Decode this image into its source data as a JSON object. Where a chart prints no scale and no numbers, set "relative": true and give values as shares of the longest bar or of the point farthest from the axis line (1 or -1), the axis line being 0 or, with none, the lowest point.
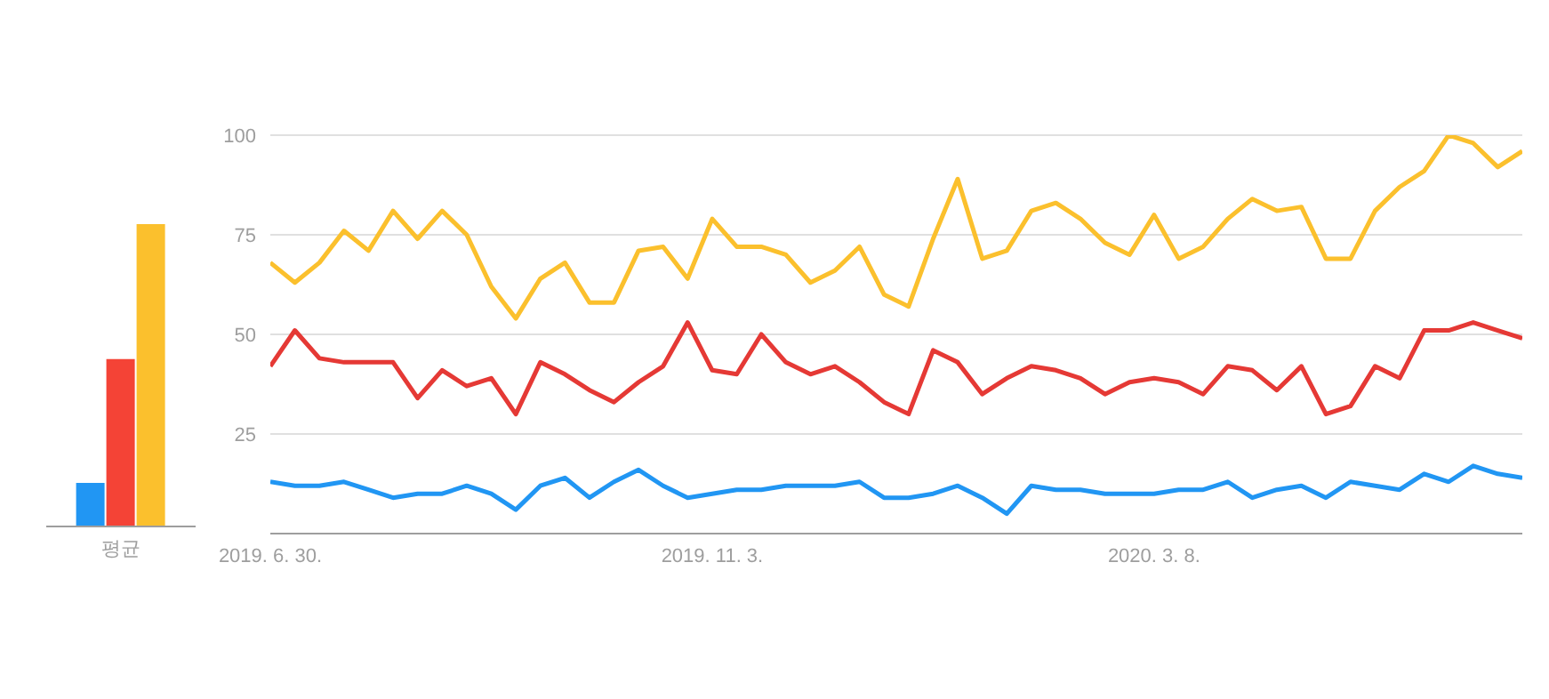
{
  "chart_data": [
    {
      "type": "bar",
      "relative": true,
      "categories": [
        "평균"
      ],
      "series": [
        {
          "color": "#2196f3",
          "values": [
            0.144
          ]
        },
        {
          "color": "#f44336",
          "values": [
            0.554
          ]
        },
        {
          "color": "#fbc02d",
          "values": [
            1
          ]
        }
      ]
    },
    {
      "type": "line",
      "grid": "y",
      "ylim": [
        0,
        100
      ],
      "yticks": [
        25,
        50,
        75,
        100
      ],
      "xlim": [
        "2019-06-30",
        "2020-06-21"
      ],
      "xticks": [
        {
          "value": "2019-06-30",
          "label": "2019. 6. 30."
        },
        {
          "value": "2019-11-03",
          "label": "2019. 11. 3."
        },
        {
          "value": "2020-03-08",
          "label": "2020. 3. 8."
        }
      ],
      "x": [
        "2019-06-30",
        "2019-07-07",
        "2019-07-14",
        "2019-07-21",
        "2019-07-28",
        "2019-08-04",
        "2019-08-11",
        "2019-08-18",
        "2019-08-25",
        "2019-09-01",
        "2019-09-08",
        "2019-09-15",
        "2019-09-22",
        "2019-09-29",
        "2019-10-06",
        "2019-10-13",
        "2019-10-20",
        "2019-10-27",
        "2019-11-03",
        "2019-11-10",
        "2019-11-17",
        "2019-11-24",
        "2019-12-01",
        "2019-12-08",
        "2019-12-15",
        "2019-12-22",
        "2019-12-29",
        "2020-01-05",
        "2020-01-12",
        "2020-01-19",
        "2020-01-26",
        "2020-02-02",
        "2020-02-09",
        "2020-02-16",
        "2020-02-23",
        "2020-03-01",
        "2020-03-08",
        "2020-03-15",
        "2020-03-22",
        "2020-03-29",
        "2020-04-05",
        "2020-04-12",
        "2020-04-19",
        "2020-04-26",
        "2020-05-03",
        "2020-05-10",
        "2020-05-17",
        "2020-05-24",
        "2020-05-31",
        "2020-06-07",
        "2020-06-14",
        "2020-06-21"
      ],
      "series": [
        {
          "color": "#2196f3",
          "values": [
            13,
            12,
            12,
            13,
            11,
            9,
            10,
            10,
            12,
            10,
            6,
            12,
            14,
            9,
            13,
            16,
            12,
            9,
            10,
            11,
            11,
            12,
            12,
            12,
            13,
            9,
            9,
            10,
            12,
            9,
            5,
            12,
            11,
            11,
            10,
            10,
            10,
            11,
            11,
            13,
            9,
            11,
            12,
            9,
            13,
            12,
            11,
            15,
            13,
            17,
            15,
            14
          ]
        },
        {
          "color": "#e53935",
          "values": [
            42,
            51,
            44,
            43,
            43,
            43,
            34,
            41,
            37,
            39,
            30,
            43,
            40,
            36,
            33,
            38,
            42,
            53,
            41,
            40,
            50,
            43,
            40,
            42,
            38,
            33,
            30,
            46,
            43,
            35,
            39,
            42,
            41,
            39,
            35,
            38,
            39,
            38,
            35,
            42,
            41,
            36,
            42,
            30,
            32,
            42,
            39,
            51,
            51,
            53,
            51,
            49
          ]
        },
        {
          "color": "#fbc02d",
          "values": [
            68,
            63,
            68,
            76,
            71,
            81,
            74,
            81,
            75,
            62,
            54,
            64,
            68,
            58,
            58,
            71,
            72,
            64,
            79,
            72,
            72,
            70,
            63,
            66,
            72,
            60,
            57,
            74,
            89,
            69,
            71,
            81,
            83,
            79,
            73,
            70,
            80,
            69,
            72,
            79,
            84,
            81,
            82,
            69,
            69,
            81,
            87,
            91,
            100,
            98,
            92,
            96
          ]
        }
      ]
    }
  ]
}
